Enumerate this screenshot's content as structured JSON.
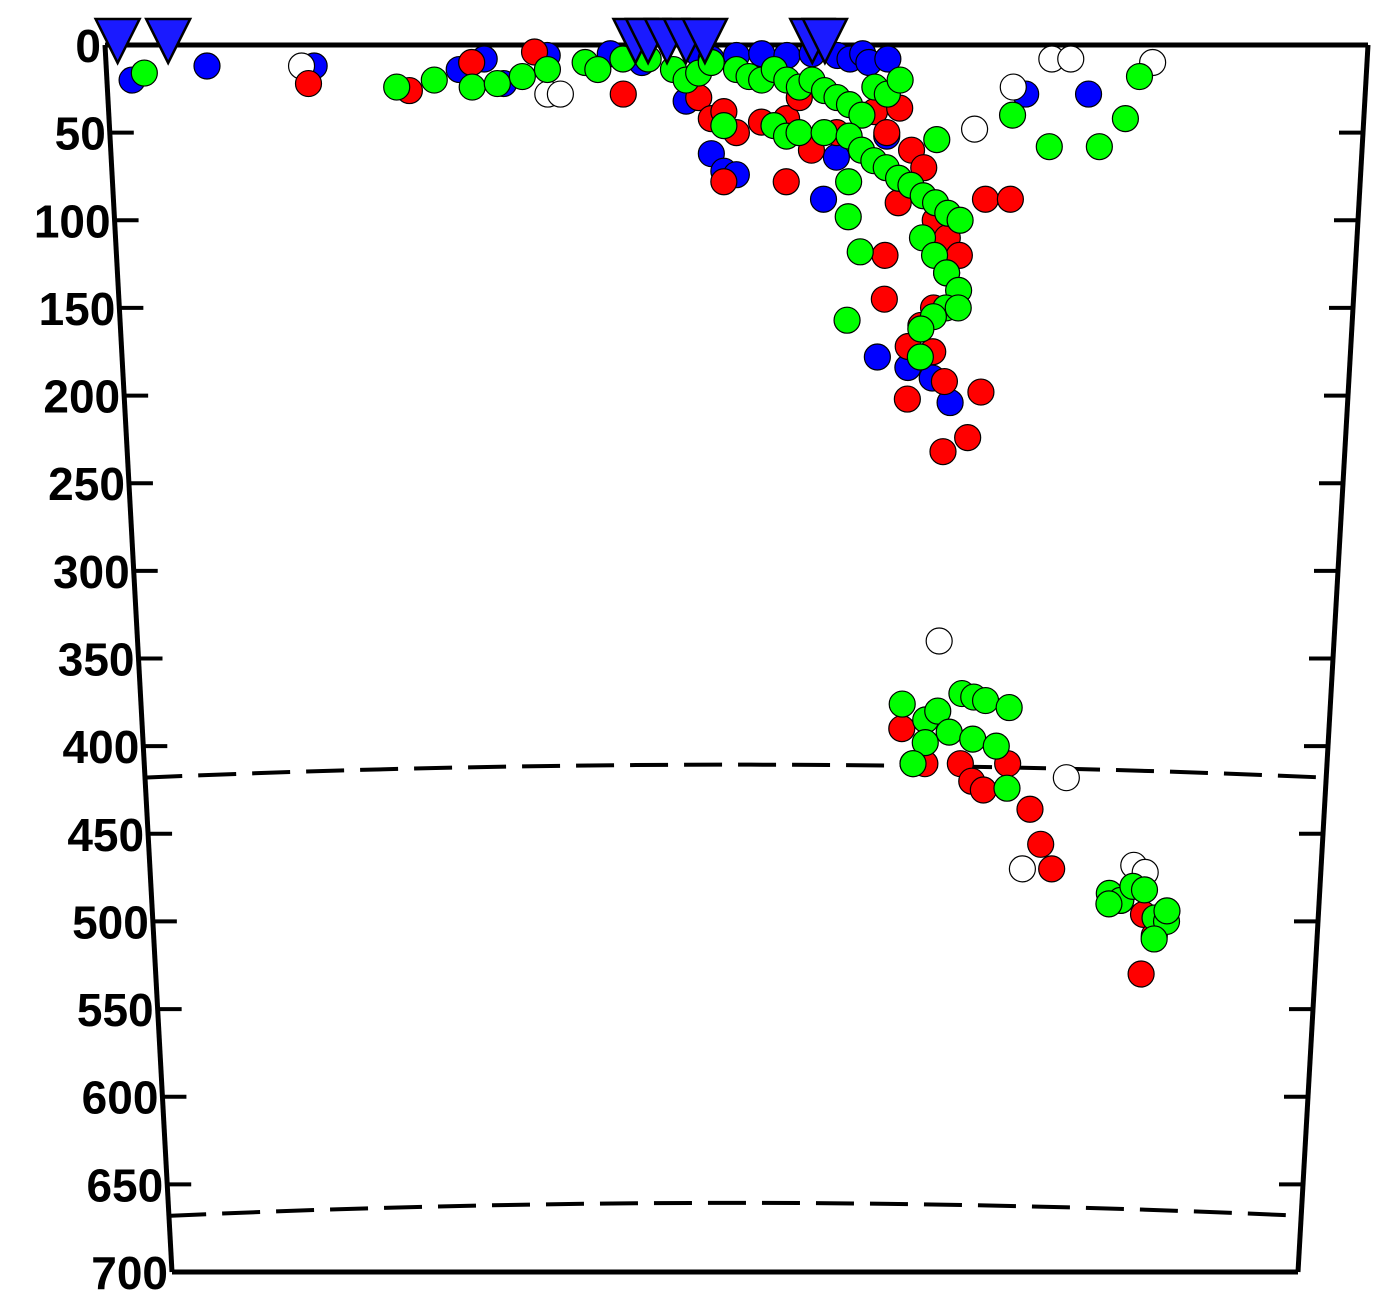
{
  "chart_data": {
    "type": "scatter",
    "title": "",
    "xlabel": "",
    "ylabel": "",
    "ylim": [
      0,
      700
    ],
    "y_inverted": true,
    "yticks": [
      "0",
      "50",
      "100",
      "150",
      "200",
      "250",
      "300",
      "350",
      "400",
      "450",
      "500",
      "550",
      "600",
      "650",
      "700"
    ],
    "reference_depths": [
      410,
      660
    ],
    "reference_line_style": "dashed",
    "grid": false,
    "legend": "none",
    "x_axis_labels": false,
    "colors": {
      "blue": "#0000ff",
      "red": "#ff0000",
      "green": "#00ff00",
      "white": "#ffffff",
      "outline": "#000000",
      "station": "#1a1aff"
    },
    "stations": [
      {
        "x": 0.01,
        "y": -8
      },
      {
        "x": 0.05,
        "y": -8
      },
      {
        "x": 0.42,
        "y": -8
      },
      {
        "x": 0.43,
        "y": -8
      },
      {
        "x": 0.445,
        "y": -8
      },
      {
        "x": 0.46,
        "y": -8
      },
      {
        "x": 0.475,
        "y": -8
      },
      {
        "x": 0.56,
        "y": -8
      },
      {
        "x": 0.57,
        "y": -8
      }
    ],
    "series": [
      {
        "color": "blue",
        "points": [
          [
            0.02,
            20
          ],
          [
            0.08,
            12
          ],
          [
            0.165,
            12
          ],
          [
            0.28,
            14
          ],
          [
            0.3,
            8
          ],
          [
            0.315,
            22
          ],
          [
            0.35,
            6
          ],
          [
            0.4,
            5
          ],
          [
            0.425,
            10
          ],
          [
            0.47,
            5
          ],
          [
            0.48,
            8
          ],
          [
            0.5,
            6
          ],
          [
            0.52,
            5
          ],
          [
            0.54,
            6
          ],
          [
            0.56,
            5
          ],
          [
            0.58,
            6
          ],
          [
            0.59,
            8
          ],
          [
            0.6,
            5
          ],
          [
            0.605,
            10
          ],
          [
            0.62,
            8
          ],
          [
            0.46,
            32
          ],
          [
            0.48,
            62
          ],
          [
            0.49,
            72
          ],
          [
            0.5,
            74
          ],
          [
            0.58,
            64
          ],
          [
            0.57,
            88
          ],
          [
            0.62,
            52
          ],
          [
            0.615,
            178
          ],
          [
            0.64,
            184
          ],
          [
            0.66,
            190
          ],
          [
            0.675,
            204
          ],
          [
            0.73,
            28
          ],
          [
            0.78,
            28
          ],
          [
            0.65,
            410
          ]
        ]
      },
      {
        "color": "white",
        "points": [
          [
            0.155,
            12
          ],
          [
            0.35,
            28
          ],
          [
            0.36,
            28
          ],
          [
            0.69,
            48
          ],
          [
            0.72,
            24
          ],
          [
            0.75,
            8
          ],
          [
            0.765,
            8
          ],
          [
            0.83,
            10
          ],
          [
            0.67,
            340
          ],
          [
            0.78,
            418
          ],
          [
            0.745,
            470
          ],
          [
            0.84,
            468
          ],
          [
            0.85,
            472
          ]
        ]
      },
      {
        "color": "red",
        "points": [
          [
            0.16,
            22
          ],
          [
            0.24,
            26
          ],
          [
            0.29,
            10
          ],
          [
            0.34,
            4
          ],
          [
            0.41,
            28
          ],
          [
            0.47,
            30
          ],
          [
            0.48,
            42
          ],
          [
            0.49,
            38
          ],
          [
            0.5,
            50
          ],
          [
            0.52,
            44
          ],
          [
            0.54,
            42
          ],
          [
            0.55,
            30
          ],
          [
            0.56,
            60
          ],
          [
            0.58,
            50
          ],
          [
            0.6,
            60
          ],
          [
            0.61,
            38
          ],
          [
            0.62,
            50
          ],
          [
            0.63,
            36
          ],
          [
            0.64,
            60
          ],
          [
            0.63,
            90
          ],
          [
            0.65,
            70
          ],
          [
            0.66,
            100
          ],
          [
            0.67,
            110
          ],
          [
            0.68,
            120
          ],
          [
            0.67,
            130
          ],
          [
            0.66,
            150
          ],
          [
            0.65,
            160
          ],
          [
            0.62,
            120
          ],
          [
            0.62,
            145
          ],
          [
            0.64,
            172
          ],
          [
            0.66,
            175
          ],
          [
            0.67,
            192
          ],
          [
            0.7,
            198
          ],
          [
            0.64,
            202
          ],
          [
            0.67,
            232
          ],
          [
            0.69,
            224
          ],
          [
            0.7,
            88
          ],
          [
            0.72,
            88
          ],
          [
            0.54,
            78
          ],
          [
            0.49,
            78
          ],
          [
            0.64,
            390
          ],
          [
            0.66,
            410
          ],
          [
            0.69,
            410
          ],
          [
            0.7,
            420
          ],
          [
            0.71,
            425
          ],
          [
            0.73,
            410
          ],
          [
            0.75,
            436
          ],
          [
            0.76,
            456
          ],
          [
            0.77,
            470
          ],
          [
            0.83,
            488
          ],
          [
            0.85,
            496
          ],
          [
            0.86,
            508
          ],
          [
            0.85,
            530
          ]
        ]
      },
      {
        "color": "green",
        "points": [
          [
            0.03,
            16
          ],
          [
            0.23,
            24
          ],
          [
            0.26,
            20
          ],
          [
            0.29,
            24
          ],
          [
            0.31,
            22
          ],
          [
            0.33,
            18
          ],
          [
            0.35,
            14
          ],
          [
            0.38,
            10
          ],
          [
            0.39,
            14
          ],
          [
            0.41,
            8
          ],
          [
            0.43,
            8
          ],
          [
            0.45,
            14
          ],
          [
            0.46,
            20
          ],
          [
            0.47,
            16
          ],
          [
            0.48,
            10
          ],
          [
            0.5,
            14
          ],
          [
            0.51,
            18
          ],
          [
            0.52,
            20
          ],
          [
            0.53,
            14
          ],
          [
            0.54,
            20
          ],
          [
            0.55,
            24
          ],
          [
            0.56,
            20
          ],
          [
            0.57,
            26
          ],
          [
            0.58,
            30
          ],
          [
            0.59,
            34
          ],
          [
            0.6,
            40
          ],
          [
            0.61,
            24
          ],
          [
            0.62,
            28
          ],
          [
            0.63,
            20
          ],
          [
            0.49,
            46
          ],
          [
            0.53,
            46
          ],
          [
            0.54,
            52
          ],
          [
            0.55,
            50
          ],
          [
            0.57,
            50
          ],
          [
            0.59,
            52
          ],
          [
            0.6,
            60
          ],
          [
            0.61,
            66
          ],
          [
            0.62,
            70
          ],
          [
            0.63,
            76
          ],
          [
            0.64,
            80
          ],
          [
            0.65,
            86
          ],
          [
            0.66,
            90
          ],
          [
            0.67,
            96
          ],
          [
            0.68,
            100
          ],
          [
            0.65,
            110
          ],
          [
            0.66,
            120
          ],
          [
            0.67,
            130
          ],
          [
            0.68,
            140
          ],
          [
            0.67,
            150
          ],
          [
            0.66,
            155
          ],
          [
            0.65,
            162
          ],
          [
            0.59,
            78
          ],
          [
            0.59,
            98
          ],
          [
            0.6,
            118
          ],
          [
            0.59,
            157
          ],
          [
            0.68,
            150
          ],
          [
            0.65,
            178
          ],
          [
            0.66,
            54
          ],
          [
            0.72,
            40
          ],
          [
            0.75,
            58
          ],
          [
            0.79,
            58
          ],
          [
            0.81,
            42
          ],
          [
            0.82,
            18
          ],
          [
            0.64,
            376
          ],
          [
            0.66,
            385
          ],
          [
            0.67,
            380
          ],
          [
            0.69,
            370
          ],
          [
            0.7,
            372
          ],
          [
            0.71,
            374
          ],
          [
            0.68,
            392
          ],
          [
            0.7,
            396
          ],
          [
            0.72,
            400
          ],
          [
            0.66,
            398
          ],
          [
            0.65,
            410
          ],
          [
            0.73,
            378
          ],
          [
            0.73,
            424
          ],
          [
            0.82,
            484
          ],
          [
            0.83,
            488
          ],
          [
            0.84,
            480
          ],
          [
            0.85,
            482
          ],
          [
            0.82,
            490
          ],
          [
            0.86,
            498
          ],
          [
            0.87,
            500
          ],
          [
            0.86,
            510
          ],
          [
            0.87,
            494
          ]
        ]
      }
    ]
  }
}
